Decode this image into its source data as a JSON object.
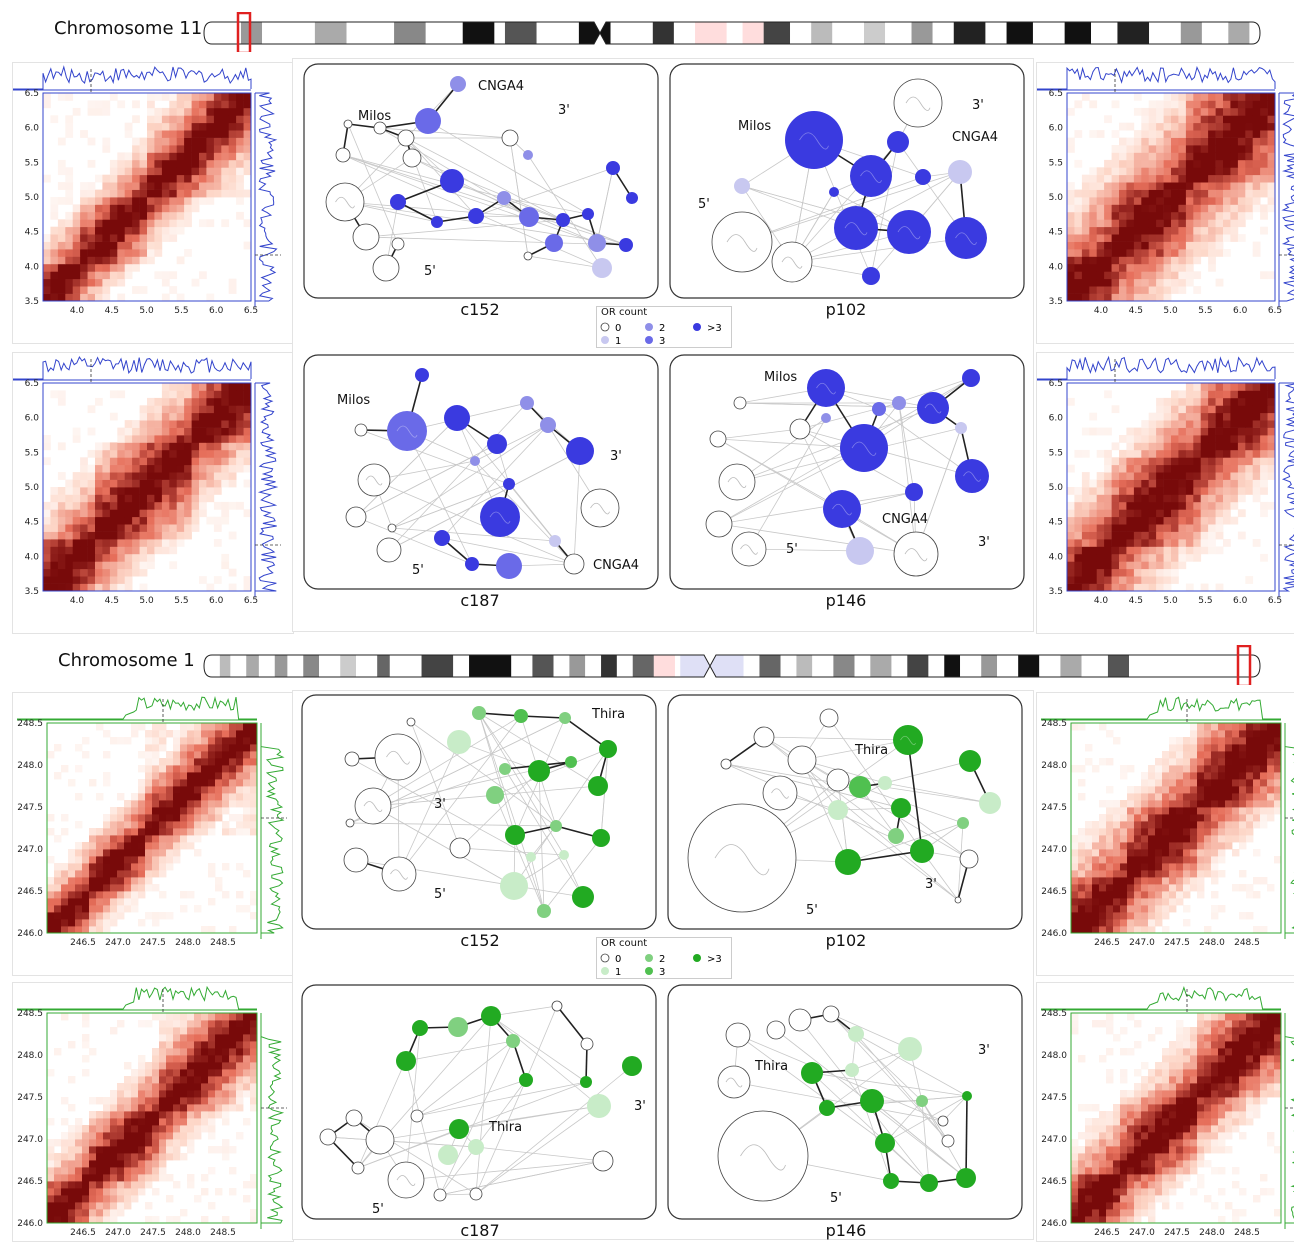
{
  "chromosome_bars": [
    {
      "label": "Chromosome 11"
    },
    {
      "label": "Chromosome 1"
    }
  ],
  "captions": {
    "top_row1": [
      "c152",
      "p102"
    ],
    "top_row2": [
      "c187",
      "p146"
    ],
    "bot_row1": [
      "c152",
      "p102"
    ],
    "bot_row2": [
      "c187",
      "p146"
    ]
  },
  "legend": {
    "title": "OR count",
    "items": [
      "0",
      "1",
      "2",
      "3",
      ">3"
    ],
    "blue_colors": [
      "#ffffff",
      "#c8c8f0",
      "#8f8fe8",
      "#6a6ae8",
      "#3a3ae0"
    ],
    "green_colors": [
      "#ffffff",
      "#c8ecc8",
      "#80d080",
      "#50c050",
      "#22aa22"
    ]
  },
  "heatmaps": {
    "chr11_ticks_x": [
      "4.0",
      "4.5",
      "5.0",
      "5.5",
      "6.0",
      "6.5"
    ],
    "chr11_ticks_y": [
      "6.5",
      "6.0",
      "5.5",
      "5.0",
      "4.5",
      "4.0",
      "3.5"
    ],
    "chr1_ticks_x": [
      "246.5",
      "247.0",
      "247.5",
      "248.0",
      "248.5"
    ],
    "chr1_ticks_y": [
      "248.5",
      "248.0",
      "247.5",
      "247.0",
      "246.5",
      "246.0"
    ]
  },
  "node_labels": {
    "milos": "Milos",
    "cnga4": "CNGA4",
    "thira": "Thira",
    "three": "3'",
    "five": "5'"
  },
  "colors": {
    "heat_dark": "#7a0b0b",
    "heat_light": "#fde3dc",
    "blue_line": "#3344cc",
    "green_line": "#33aa33",
    "red_box": "#e02020"
  }
}
